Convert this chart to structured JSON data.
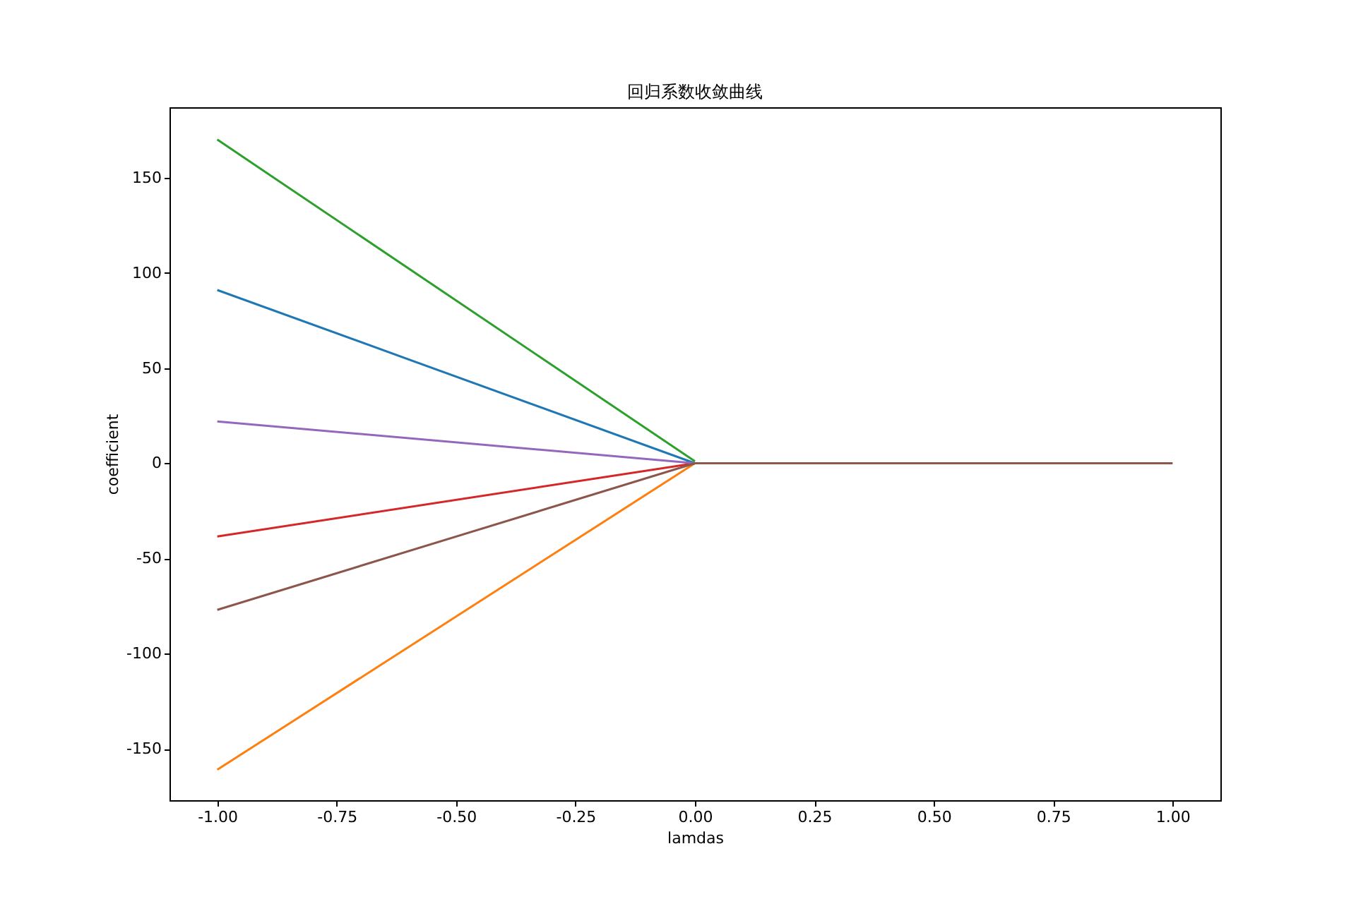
{
  "chart_data": {
    "type": "line",
    "title": "回归系数收敛曲线",
    "xlabel": "lamdas",
    "ylabel": "coefficient",
    "x": [
      -1,
      0,
      1
    ],
    "series": [
      {
        "color": "#1f77b4",
        "values": [
          91,
          0,
          null
        ]
      },
      {
        "color": "#ff7f0e",
        "values": [
          -161,
          0,
          null
        ]
      },
      {
        "color": "#2ca02c",
        "values": [
          170,
          1,
          null
        ]
      },
      {
        "color": "#d62728",
        "values": [
          -38.5,
          0,
          null
        ]
      },
      {
        "color": "#9467bd",
        "values": [
          22,
          0,
          null
        ]
      },
      {
        "color": "#8c564b",
        "values": [
          -77,
          0,
          0
        ]
      }
    ],
    "xlim": [
      -1.1,
      1.1
    ],
    "ylim": [
      -177,
      187
    ],
    "xticks": [
      {
        "value": -1,
        "label": "-1.00"
      },
      {
        "value": -0.75,
        "label": "-0.75"
      },
      {
        "value": -0.5,
        "label": "-0.50"
      },
      {
        "value": -0.25,
        "label": "-0.25"
      },
      {
        "value": 0,
        "label": "0.00"
      },
      {
        "value": 0.25,
        "label": "0.25"
      },
      {
        "value": 0.5,
        "label": "0.50"
      },
      {
        "value": 0.75,
        "label": "0.75"
      },
      {
        "value": 1,
        "label": "1.00"
      }
    ],
    "yticks": [
      -150,
      -100,
      -50,
      0,
      50,
      100,
      150
    ],
    "grid": false,
    "legend": false,
    "marker": "none",
    "line_style": "solid"
  }
}
